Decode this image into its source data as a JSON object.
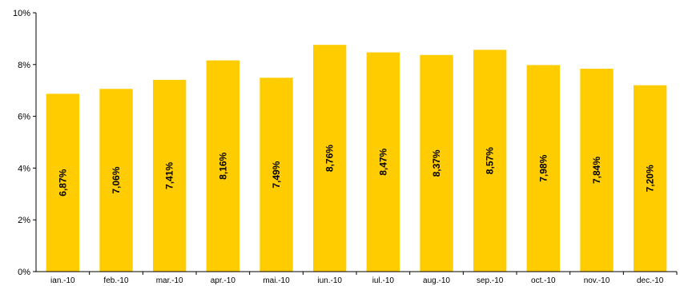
{
  "chart_data": {
    "type": "bar",
    "categories": [
      "ian.-10",
      "feb.-10",
      "mar.-10",
      "apr.-10",
      "mai.-10",
      "iun.-10",
      "iul.-10",
      "aug.-10",
      "sep.-10",
      "oct.-10",
      "nov.-10",
      "dec.-10"
    ],
    "values": [
      6.87,
      7.06,
      7.41,
      8.16,
      7.49,
      8.76,
      8.47,
      8.37,
      8.57,
      7.98,
      7.84,
      7.2
    ],
    "data_labels": [
      "6,87%",
      "7,06%",
      "7,41%",
      "8,16%",
      "7,49%",
      "8,76%",
      "8,47%",
      "8,37%",
      "8,57%",
      "7,98%",
      "7,84%",
      "7,20%"
    ],
    "y_ticks": [
      0,
      2,
      4,
      6,
      8,
      10
    ],
    "y_tick_labels": [
      "0%",
      "2%",
      "4%",
      "6%",
      "8%",
      "10%"
    ],
    "ylim": [
      0,
      10
    ],
    "grid": false,
    "legend": "none",
    "bar_color": "#FFCC00",
    "data_label_orientation": "vertical"
  }
}
